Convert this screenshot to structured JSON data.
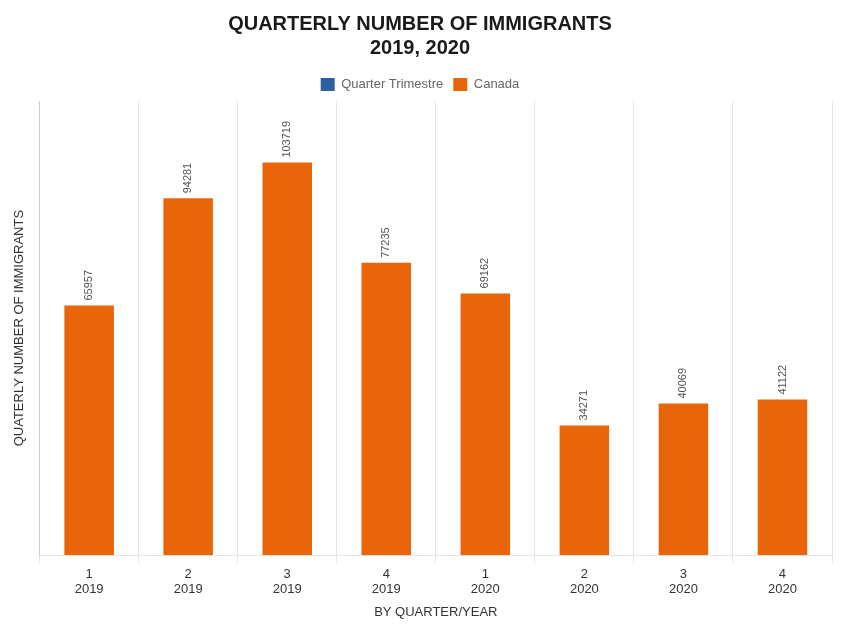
{
  "chart_data": {
    "type": "bar",
    "title": "QUARTERLY NUMBER OF IMMIGRANTS\n2019, 2020",
    "xlabel": "BY QUARTER/YEAR",
    "ylabel": "QUATERLY NUMBER OF IMMIGRANTS",
    "categories": [
      "1\n2019",
      "2\n2019",
      "3\n2019",
      "4\n2019",
      "1\n2020",
      "2\n2020",
      "3\n2020",
      "4\n2020"
    ],
    "series": [
      {
        "name": "Quarter Trimestre",
        "color": "#2E5FA3",
        "values": [
          null,
          null,
          null,
          null,
          null,
          null,
          null,
          null
        ]
      },
      {
        "name": "Canada",
        "color": "#E8650A",
        "values": [
          65957,
          94281,
          103719,
          77235,
          69162,
          34271,
          40069,
          41122
        ]
      }
    ],
    "ylim": [
      0,
      120000
    ],
    "grid": "x",
    "legend": "top",
    "data_labels": true,
    "tick_labels": "x"
  }
}
